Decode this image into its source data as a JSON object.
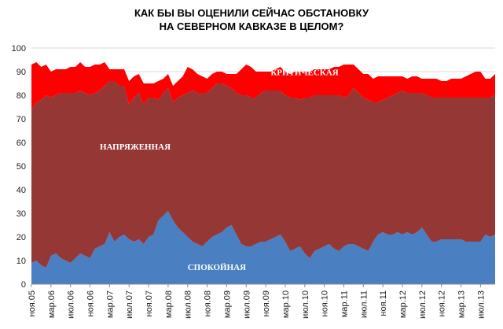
{
  "chart_data": {
    "type": "area",
    "title": [
      "КАК БЫ ВЫ ОЦЕНИЛИ СЕЙЧАС ОБСТАНОВКУ",
      "НА СЕВЕРНОМ КАВКАЗЕ В ЦЕЛОМ?"
    ],
    "stacked": true,
    "ylim": [
      0,
      100
    ],
    "yticks": [
      0,
      10,
      20,
      30,
      40,
      50,
      60,
      70,
      80,
      90,
      100
    ],
    "grid": "horizontal",
    "x_tick_labels": [
      "ноя.05",
      "мар.06",
      "июл.06",
      "ноя.06",
      "мар.07",
      "июл.07",
      "ноя.07",
      "мар.08",
      "июл.08",
      "ноя.08",
      "мар.09",
      "июл.09",
      "ноя.09",
      "мар.10",
      "июл.10",
      "ноя.10",
      "мар.11",
      "июл.11",
      "ноя.11",
      "мар.12",
      "июл.12",
      "ноя.12",
      "мар.13",
      "июл.13"
    ],
    "x": [
      "2005-11",
      "2005-12",
      "2006-01",
      "2006-02",
      "2006-03",
      "2006-04",
      "2006-05",
      "2006-06",
      "2006-07",
      "2006-08",
      "2006-09",
      "2006-10",
      "2006-11",
      "2006-12",
      "2007-01",
      "2007-02",
      "2007-03",
      "2007-04",
      "2007-05",
      "2007-06",
      "2007-07",
      "2007-08",
      "2007-09",
      "2007-10",
      "2007-11",
      "2007-12",
      "2008-01",
      "2008-02",
      "2008-03",
      "2008-04",
      "2008-05",
      "2008-06",
      "2008-07",
      "2008-08",
      "2008-09",
      "2008-10",
      "2008-11",
      "2008-12",
      "2009-01",
      "2009-02",
      "2009-03",
      "2009-04",
      "2009-05",
      "2009-06",
      "2009-07",
      "2009-08",
      "2009-09",
      "2009-10",
      "2009-11",
      "2009-12",
      "2010-01",
      "2010-02",
      "2010-03",
      "2010-04",
      "2010-05",
      "2010-06",
      "2010-07",
      "2010-08",
      "2010-09",
      "2010-10",
      "2010-11",
      "2010-12",
      "2011-01",
      "2011-02",
      "2011-03",
      "2011-04",
      "2011-05",
      "2011-06",
      "2011-07",
      "2011-08",
      "2011-09",
      "2011-10",
      "2011-11",
      "2011-12",
      "2012-01",
      "2012-02",
      "2012-03",
      "2012-04",
      "2012-05",
      "2012-06",
      "2012-07",
      "2012-08",
      "2012-09",
      "2012-10",
      "2012-11",
      "2012-12",
      "2013-01",
      "2013-02",
      "2013-03",
      "2013-04",
      "2013-05",
      "2013-06",
      "2013-07",
      "2013-08",
      "2013-09",
      "2013-10"
    ],
    "series": [
      {
        "name": "СПОКОЙНАЯ",
        "color": "#4a7fc1",
        "values": [
          9,
          10,
          8,
          7,
          12,
          13,
          11,
          10,
          9,
          11,
          13,
          12,
          11,
          15,
          16,
          17,
          22,
          18,
          20,
          21,
          19,
          18,
          19,
          17,
          20,
          21,
          27,
          29,
          31,
          27,
          24,
          22,
          20,
          18,
          17,
          16,
          18,
          20,
          21,
          22,
          24,
          25,
          21,
          17,
          16,
          16,
          17,
          18,
          18,
          19,
          20,
          21,
          18,
          14,
          15,
          16,
          13,
          11,
          14,
          15,
          16,
          17,
          15,
          14,
          16,
          17,
          17,
          16,
          15,
          14,
          18,
          21,
          22,
          21,
          21,
          22,
          21,
          22,
          21,
          22,
          24,
          21,
          18,
          18,
          19,
          19,
          19,
          19,
          19,
          18,
          18,
          18,
          18,
          21,
          20,
          21
        ]
      },
      {
        "name": "НАПРЯЖЕННАЯ",
        "color": "#953735",
        "values": [
          65,
          67,
          70,
          73,
          67,
          67,
          70,
          71,
          72,
          70,
          69,
          69,
          69,
          66,
          66,
          67,
          64,
          68,
          64,
          63,
          57,
          61,
          62,
          59,
          59,
          58,
          51,
          52,
          52,
          50,
          55,
          58,
          61,
          64,
          64,
          65,
          63,
          63,
          64,
          63,
          60,
          58,
          60,
          63,
          64,
          63,
          62,
          63,
          64,
          63,
          62,
          61,
          62,
          65,
          64,
          62,
          66,
          68,
          66,
          65,
          64,
          63,
          65,
          66,
          63,
          63,
          66,
          65,
          64,
          64,
          59,
          56,
          56,
          58,
          59,
          59,
          61,
          59,
          60,
          59,
          57,
          59,
          61,
          61,
          60,
          60,
          60,
          60,
          60,
          61,
          61,
          61,
          61,
          58,
          59,
          59
        ]
      },
      {
        "name": "КРИТИЧЕСКАЯ",
        "color": "#ff0000",
        "values": [
          19,
          17,
          14,
          13,
          11,
          11,
          10,
          10,
          11,
          11,
          12,
          11,
          12,
          12,
          11,
          10,
          5,
          5,
          7,
          7,
          10,
          9,
          8,
          9,
          6,
          6,
          8,
          6,
          6,
          7,
          7,
          8,
          11,
          9,
          8,
          7,
          6,
          6,
          5,
          5,
          5,
          6,
          8,
          11,
          13,
          13,
          11,
          9,
          8,
          8,
          9,
          10,
          10,
          10,
          11,
          12,
          11,
          11,
          11,
          11,
          11,
          11,
          12,
          12,
          14,
          13,
          10,
          10,
          10,
          11,
          10,
          11,
          10,
          9,
          8,
          7,
          6,
          6,
          7,
          7,
          6,
          7,
          8,
          8,
          7,
          7,
          8,
          8,
          8,
          9,
          10,
          11,
          11,
          8,
          8,
          9
        ]
      }
    ],
    "annotations": [
      {
        "text": "КРИТИЧЕСКАЯ",
        "color": "#ffffff"
      },
      {
        "text": "НАПРЯЖЕННАЯ",
        "color": "#ffffff"
      },
      {
        "text": "СПОКОЙНАЯ",
        "color": "#ffffff"
      }
    ]
  }
}
